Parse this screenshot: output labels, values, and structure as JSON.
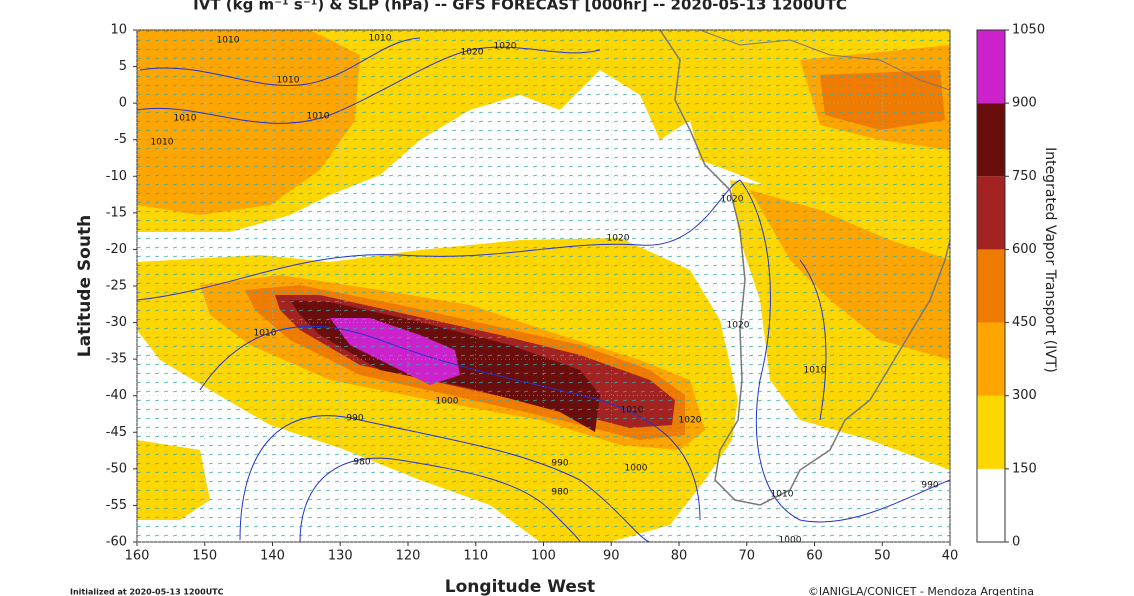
{
  "title": "IVT (kg m⁻¹ s⁻¹) & SLP (hPa) -- GFS FORECAST [000hr] -- 2020-05-13 1200UTC",
  "x_axis": {
    "label": "Longitude West",
    "lim": [
      160,
      40
    ],
    "ticks": [
      160,
      150,
      140,
      130,
      120,
      110,
      100,
      90,
      80,
      70,
      60,
      50,
      40
    ]
  },
  "y_axis": {
    "label": "Latitude South",
    "lim": [
      10,
      -60
    ],
    "ticks": [
      10,
      5,
      0,
      -5,
      -10,
      -15,
      -20,
      -25,
      -30,
      -35,
      -40,
      -45,
      -50,
      -55,
      -60
    ]
  },
  "colorbar": {
    "label": "Integrated Vapor Transport (IVT)",
    "levels": [
      0,
      150,
      300,
      450,
      600,
      750,
      900,
      1050
    ],
    "colors": [
      "#ffffff",
      "#ffd700",
      "#ffa500",
      "#ef7c00",
      "#a32222",
      "#6a0d0d",
      "#cc22cc"
    ]
  },
  "contour_labels": [
    1010,
    1010,
    1010,
    1010,
    1010,
    1010,
    1020,
    1020,
    1020,
    1020,
    1010,
    1000,
    990,
    980,
    990,
    980,
    1000,
    1010,
    1020,
    1010,
    1000,
    990,
    1010,
    1020
  ],
  "footer": {
    "left": "Initialized at 2020-05-13 1200UTC",
    "right": "©IANIGLA/CONICET - Mendoza Argentina"
  }
}
